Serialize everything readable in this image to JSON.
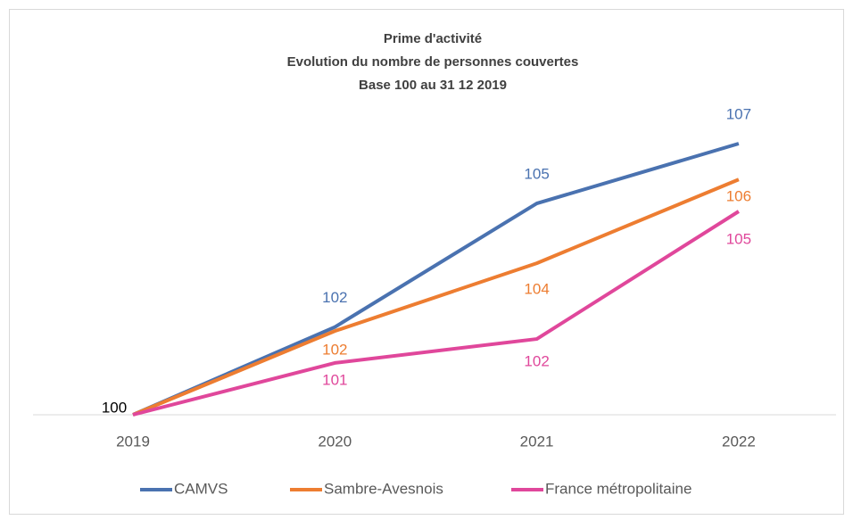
{
  "chart_data": {
    "type": "line",
    "title": [
      "Prime d'activité",
      "Evolution du nombre de personnes couvertes",
      "Base 100 au 31 12 2019"
    ],
    "categories": [
      "2019",
      "2020",
      "2021",
      "2022"
    ],
    "series": [
      {
        "name": "CAMVS",
        "color": "#4a72b0",
        "values": [
          100,
          102.2,
          105.3,
          106.8
        ],
        "value_labels": [
          "100",
          "102",
          "105",
          "107"
        ]
      },
      {
        "name": "Sambre-Avesnois",
        "color": "#ed7d31",
        "values": [
          100,
          102.1,
          103.8,
          105.9
        ],
        "value_labels": [
          null,
          "102",
          "104",
          "106"
        ]
      },
      {
        "name": "France métropolitaine",
        "color": "#e0479b",
        "values": [
          100,
          101.3,
          101.9,
          105.1
        ],
        "value_labels": [
          null,
          "101",
          "102",
          "105"
        ]
      }
    ]
  }
}
